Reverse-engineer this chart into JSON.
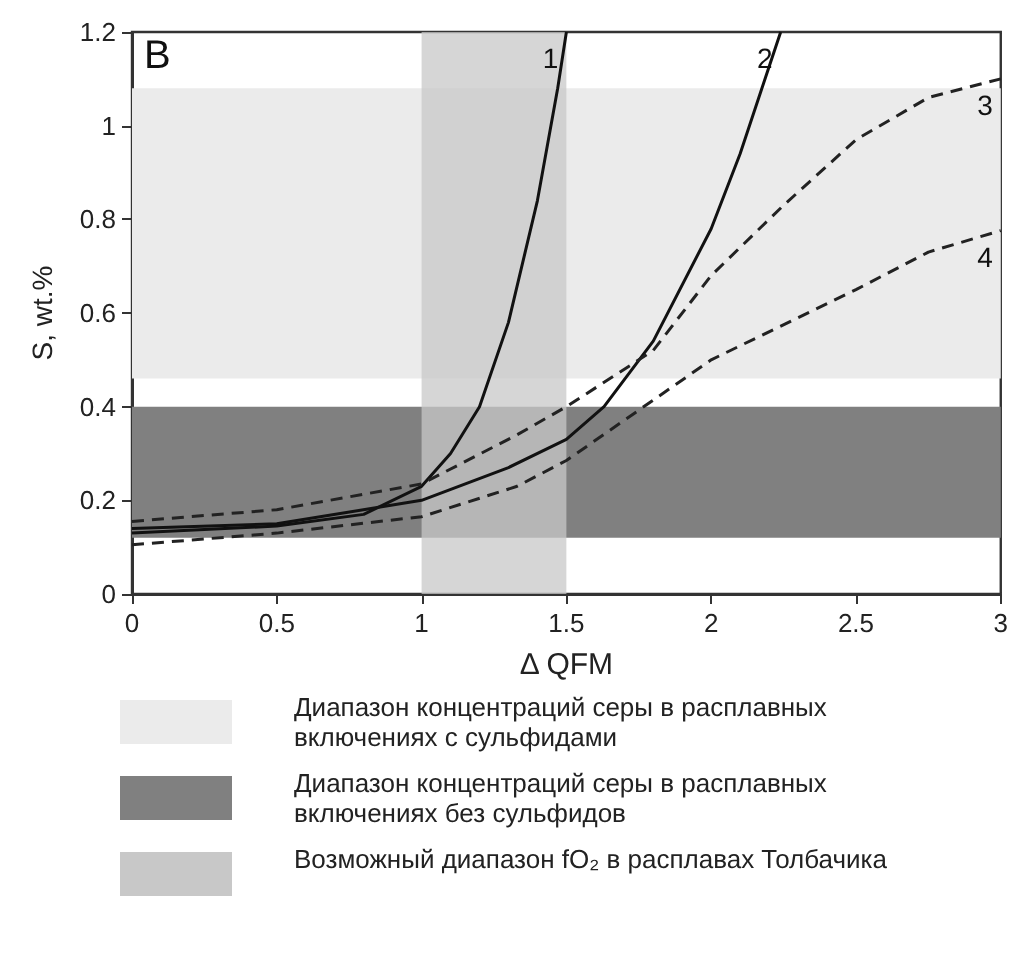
{
  "chart_data": {
    "type": "line",
    "xlabel": "Δ QFM",
    "ylabel": "S, wt.%",
    "xlim": [
      0,
      3
    ],
    "xticks": [
      0,
      0.5,
      1,
      1.5,
      2,
      2.5,
      3
    ],
    "ylim": [
      0,
      1.2
    ],
    "yticks": [
      0,
      0.2,
      0.4,
      0.6,
      0.8,
      1,
      1.2
    ],
    "grid": false,
    "legend": "bottom",
    "marker": "none",
    "series": [
      {
        "name": "1",
        "color": "#111111",
        "line_style": "solid",
        "x": [
          0,
          0.5,
          0.8,
          1.0,
          1.1,
          1.2,
          1.3,
          1.4,
          1.47,
          1.5
        ],
        "values": [
          0.13,
          0.145,
          0.17,
          0.23,
          0.3,
          0.4,
          0.58,
          0.84,
          1.08,
          1.2
        ]
      },
      {
        "name": "2",
        "color": "#111111",
        "line_style": "solid",
        "x": [
          0,
          0.5,
          1.0,
          1.3,
          1.5,
          1.63,
          1.8,
          2.0,
          2.1,
          2.24
        ],
        "values": [
          0.14,
          0.15,
          0.2,
          0.27,
          0.33,
          0.4,
          0.54,
          0.78,
          0.94,
          1.2
        ]
      },
      {
        "name": "3",
        "color": "#222222",
        "line_style": "dashed",
        "x": [
          0,
          0.5,
          1.0,
          1.33,
          1.5,
          1.8,
          2.0,
          2.25,
          2.5,
          2.75,
          3.0
        ],
        "values": [
          0.155,
          0.18,
          0.235,
          0.34,
          0.4,
          0.52,
          0.68,
          0.83,
          0.97,
          1.06,
          1.1
        ]
      },
      {
        "name": "4",
        "color": "#222222",
        "line_style": "dashed",
        "x": [
          0,
          0.5,
          1.0,
          1.33,
          1.5,
          2.0,
          2.5,
          2.75,
          3.0
        ],
        "values": [
          0.105,
          0.13,
          0.165,
          0.23,
          0.285,
          0.5,
          0.65,
          0.73,
          0.776
        ]
      }
    ],
    "bands": [
      {
        "axis": "y",
        "from": 0.46,
        "to": 1.08,
        "color": "#ebebeb",
        "label": "Диапазон концентраций серы в расплавных включениях с сульфидами"
      },
      {
        "axis": "y",
        "from": 0.12,
        "to": 0.4,
        "color": "#808080",
        "label": "Диапазон концентраций серы в расплавных включениях без сульфидов"
      },
      {
        "axis": "x",
        "from": 1,
        "to": 1.5,
        "color": "#c8c8c8",
        "label": "Возможный диапазон fO₂ в расплавах Толбачика"
      }
    ],
    "annotations": [
      "B"
    ]
  }
}
